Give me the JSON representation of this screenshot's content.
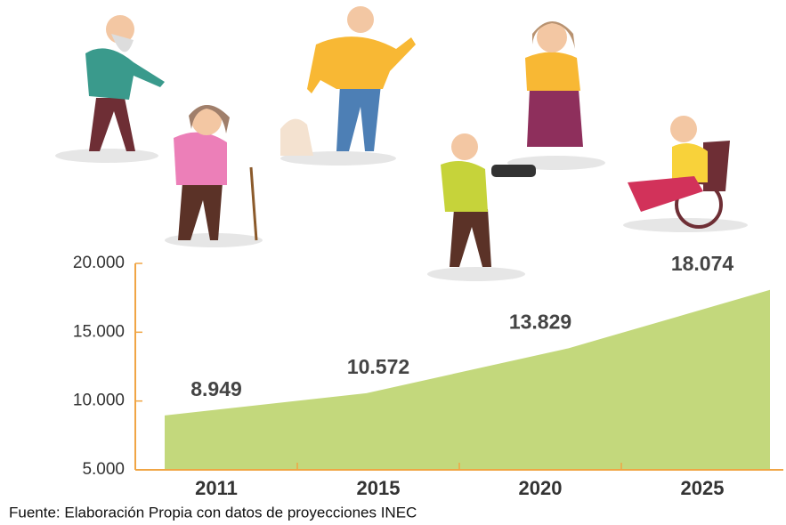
{
  "chart_data": {
    "type": "area",
    "categories": [
      "2011",
      "2015",
      "2020",
      "2025"
    ],
    "values": [
      8949,
      10572,
      13829,
      18074
    ],
    "value_labels": [
      "8.949",
      "10.572",
      "13.829",
      "18.074"
    ],
    "color": "#c3d87c",
    "axis_color": "#f0a545",
    "ylim": [
      5000,
      20000
    ],
    "yticks": [
      {
        "value": 5000,
        "label": "5.000"
      },
      {
        "value": 10000,
        "label": "10.000"
      },
      {
        "value": 15000,
        "label": "15.000"
      },
      {
        "value": 20000,
        "label": "20.000"
      }
    ],
    "source": "Fuente: Elaboración Propia con datos de proyecciones INEC"
  }
}
